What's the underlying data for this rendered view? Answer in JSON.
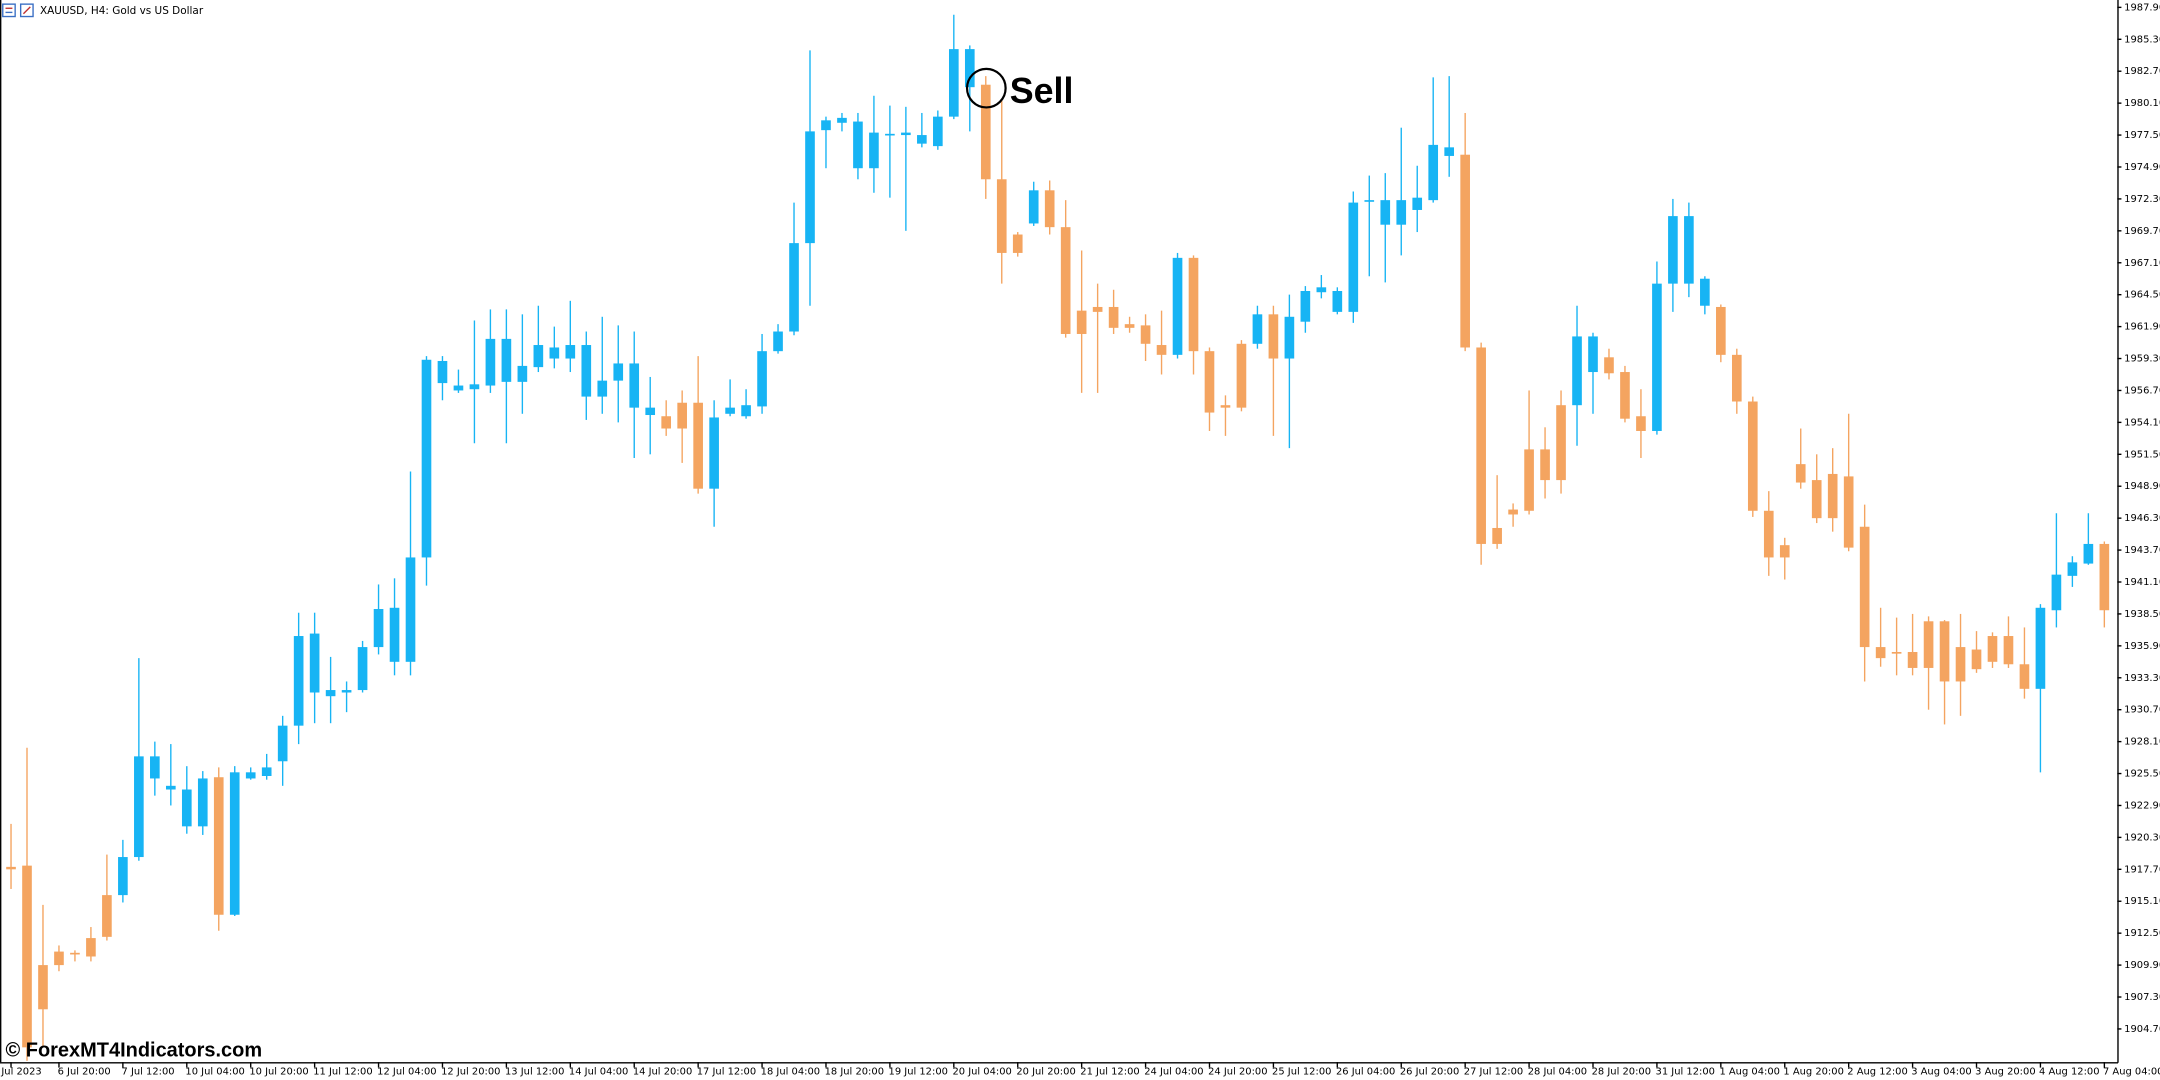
{
  "chart_data": {
    "type": "candlestick",
    "title": "XAUUSD, H4:  Gold vs US Dollar",
    "annotation": "Sell",
    "watermark": "© ForexMT4Indicators.com",
    "up_color": "#17b4f4",
    "down_color": "#f4a460",
    "categories": [
      "Jul 2023",
      null,
      null,
      "6 Jul 20:00",
      null,
      null,
      null,
      "7 Jul 12:00",
      null,
      null,
      null,
      "10 Jul 04:00",
      null,
      null,
      null,
      "10 Jul 20:00",
      null,
      null,
      null,
      "11 Jul 12:00",
      null,
      null,
      null,
      "12 Jul 04:00",
      null,
      null,
      null,
      "12 Jul 20:00",
      null,
      null,
      null,
      "13 Jul 12:00",
      null,
      null,
      null,
      "14 Jul 04:00",
      null,
      null,
      null,
      "14 Jul 20:00",
      null,
      null,
      null,
      "17 Jul 12:00",
      null,
      null,
      null,
      "18 Jul 04:00",
      null,
      null,
      null,
      "18 Jul 20:00",
      null,
      null,
      null,
      "19 Jul 12:00",
      null,
      null,
      null,
      "20 Jul 04:00",
      null,
      null,
      null,
      "20 Jul 20:00",
      null,
      null,
      null,
      "21 Jul 12:00",
      null,
      null,
      null,
      "24 Jul 04:00",
      null,
      null,
      null,
      "24 Jul 20:00",
      null,
      null,
      null,
      "25 Jul 12:00",
      null,
      null,
      null,
      "26 Jul 04:00",
      null,
      null,
      null,
      "26 Jul 20:00",
      null,
      null,
      null,
      "27 Jul 12:00",
      null,
      null,
      null,
      "28 Jul 04:00",
      null,
      null,
      null,
      "28 Jul 20:00",
      null,
      null,
      null,
      "31 Jul 12:00",
      null,
      null,
      null,
      "1 Aug 04:00",
      null,
      null,
      null,
      "1 Aug 20:00",
      null,
      null,
      null,
      "2 Aug 12:00",
      null,
      null,
      null,
      "3 Aug 04:00",
      null,
      null,
      null,
      "3 Aug 20:00",
      null,
      null,
      null,
      "4 Aug 12:00",
      null,
      null,
      null,
      "7 Aug 04:00"
    ],
    "open": [
      1917.9,
      1918.0,
      1909.9,
      1911.0,
      1910.9,
      1912.1,
      1915.6,
      1915.6,
      1918.7,
      1925.1,
      1924.2,
      1921.2,
      1921.2,
      1925.2,
      1914.0,
      1925.1,
      1925.3,
      1926.5,
      1929.4,
      1932.1,
      1931.8,
      1932.1,
      1932.3,
      1935.8,
      1934.6,
      1934.6,
      1943.1,
      1957.3,
      1956.7,
      1956.8,
      1957.1,
      1957.4,
      1957.4,
      1958.6,
      1959.3,
      1959.3,
      1956.2,
      1956.2,
      1957.5,
      1955.3,
      1954.7,
      1954.6,
      1955.7,
      1955.7,
      1948.7,
      1954.8,
      1954.6,
      1955.4,
      1959.9,
      1961.5,
      1968.7,
      1977.9,
      1978.5,
      1974.8,
      1974.8,
      1977.5,
      1977.5,
      1976.8,
      1976.6,
      1979.0,
      1981.4,
      1981.6,
      1973.9,
      1969.4,
      1970.3,
      1973.0,
      1970.0,
      1963.2,
      1963.5,
      1963.5,
      1962.1,
      1962.0,
      1960.4,
      1959.6,
      1967.5,
      1959.9,
      1955.5,
      1960.5,
      1960.5,
      1962.9,
      1959.3,
      1962.3,
      1964.7,
      1963.1,
      1963.1,
      1972.1,
      1970.2,
      1970.2,
      1971.4,
      1972.2,
      1975.8,
      1975.9,
      1960.2,
      1945.5,
      1947.0,
      1951.9,
      1951.9,
      1955.5,
      1955.5,
      1958.2,
      1959.4,
      1958.2,
      1954.6,
      1953.4,
      1965.4,
      1965.4,
      1963.6,
      1963.5,
      1959.6,
      1955.8,
      1946.9,
      1944.1,
      1950.7,
      1949.4,
      1949.9,
      1949.7,
      1945.6,
      1935.8,
      1935.4,
      1935.4,
      1937.9,
      1937.9,
      1935.8,
      1935.6,
      1936.7,
      1936.7,
      1934.4,
      1932.4,
      1938.8,
      1941.6,
      1942.6,
      1944.2
    ],
    "high": [
      1921.4,
      1927.6,
      1914.8,
      1911.5,
      1911.1,
      1913.0,
      1918.9,
      1920.1,
      1934.9,
      1928.1,
      1927.9,
      1926.1,
      1925.7,
      1926.0,
      1926.1,
      1926.0,
      1927.1,
      1930.2,
      1938.6,
      1938.6,
      1935.0,
      1933.0,
      1936.3,
      1940.9,
      1941.4,
      1950.1,
      1959.5,
      1959.5,
      1958.4,
      1962.4,
      1963.3,
      1963.3,
      1962.9,
      1963.6,
      1961.9,
      1964.0,
      1961.5,
      1962.7,
      1962.0,
      1961.5,
      1957.8,
      1955.9,
      1956.7,
      1959.5,
      1955.9,
      1957.6,
      1956.8,
      1961.3,
      1962.1,
      1972.0,
      1984.4,
      1979.0,
      1979.3,
      1979.3,
      1980.7,
      1979.9,
      1979.8,
      1979.3,
      1979.5,
      1987.3,
      1984.8,
      1982.3,
      1980.4,
      1969.6,
      1973.7,
      1973.8,
      1972.2,
      1968.1,
      1965.4,
      1964.9,
      1962.7,
      1962.9,
      1963.2,
      1967.9,
      1967.7,
      1960.2,
      1956.3,
      1960.8,
      1963.6,
      1963.6,
      1964.5,
      1965.2,
      1966.1,
      1965.1,
      1972.9,
      1974.2,
      1974.4,
      1978.1,
      1975.0,
      1982.2,
      1982.3,
      1979.3,
      1960.6,
      1949.8,
      1947.5,
      1956.7,
      1953.7,
      1956.7,
      1963.6,
      1961.4,
      1960.1,
      1958.7,
      1956.8,
      1967.2,
      1972.3,
      1972.0,
      1966.0,
      1963.7,
      1960.1,
      1956.2,
      1948.5,
      1944.7,
      1953.6,
      1951.5,
      1952.0,
      1954.8,
      1947.4,
      1939.0,
      1938.2,
      1938.5,
      1938.3,
      1938.0,
      1938.5,
      1937.1,
      1937.0,
      1938.3,
      1937.4,
      1939.3,
      1946.7,
      1943.2,
      1946.7,
      1944.4
    ],
    "low": [
      1916.1,
      1902.1,
      1903.2,
      1909.4,
      1910.2,
      1910.2,
      1911.9,
      1915.0,
      1918.4,
      1923.7,
      1922.9,
      1920.6,
      1920.5,
      1912.7,
      1913.9,
      1925.0,
      1925.0,
      1924.5,
      1927.9,
      1929.6,
      1929.6,
      1930.5,
      1932.1,
      1935.2,
      1933.5,
      1933.5,
      1940.8,
      1955.9,
      1956.5,
      1952.4,
      1956.5,
      1952.4,
      1954.8,
      1958.2,
      1958.5,
      1958.2,
      1954.3,
      1954.8,
      1954.1,
      1951.2,
      1951.5,
      1953.0,
      1950.8,
      1948.3,
      1945.6,
      1954.6,
      1954.4,
      1954.8,
      1959.7,
      1961.2,
      1963.6,
      1974.8,
      1977.8,
      1973.9,
      1972.8,
      1972.4,
      1969.7,
      1976.5,
      1976.3,
      1978.8,
      1977.8,
      1972.3,
      1965.4,
      1967.6,
      1970.1,
      1969.4,
      1961.0,
      1956.5,
      1956.5,
      1961.3,
      1961.4,
      1959.1,
      1958.0,
      1959.3,
      1958.0,
      1953.4,
      1953.0,
      1955.0,
      1960.1,
      1953.0,
      1952.0,
      1961.4,
      1964.2,
      1962.9,
      1962.2,
      1966.0,
      1965.5,
      1967.7,
      1969.6,
      1972.0,
      1974.1,
      1959.9,
      1942.5,
      1943.8,
      1945.6,
      1946.6,
      1947.9,
      1948.3,
      1952.2,
      1954.8,
      1957.6,
      1954.1,
      1951.2,
      1953.1,
      1963.1,
      1964.3,
      1962.9,
      1959.0,
      1954.8,
      1946.4,
      1941.6,
      1941.3,
      1948.7,
      1945.9,
      1945.2,
      1943.6,
      1933.0,
      1934.2,
      1933.5,
      1933.5,
      1930.7,
      1929.5,
      1930.2,
      1933.7,
      1934.1,
      1934.1,
      1931.6,
      1925.6,
      1937.4,
      1940.7,
      1942.5,
      1937.4
    ],
    "close": [
      1917.7,
      1903.2,
      1906.3,
      1909.9,
      1910.8,
      1910.6,
      1912.2,
      1918.7,
      1926.9,
      1926.9,
      1924.5,
      1924.2,
      1925.1,
      1914.0,
      1925.6,
      1925.6,
      1926.0,
      1929.4,
      1936.7,
      1936.9,
      1932.3,
      1932.3,
      1935.8,
      1938.9,
      1939.0,
      1943.1,
      1959.2,
      1959.1,
      1957.1,
      1957.2,
      1960.9,
      1960.9,
      1958.7,
      1960.4,
      1960.2,
      1960.4,
      1960.4,
      1957.5,
      1958.9,
      1958.9,
      1955.3,
      1953.6,
      1953.6,
      1948.7,
      1954.5,
      1955.3,
      1955.5,
      1959.9,
      1961.5,
      1968.7,
      1977.8,
      1978.7,
      1978.9,
      1978.6,
      1977.7,
      1977.6,
      1977.7,
      1977.5,
      1979.0,
      1984.5,
      1984.5,
      1973.9,
      1967.9,
      1967.9,
      1973.0,
      1970.0,
      1961.3,
      1961.3,
      1963.1,
      1961.8,
      1961.8,
      1960.5,
      1959.6,
      1967.5,
      1959.9,
      1954.9,
      1955.3,
      1955.3,
      1962.9,
      1959.3,
      1962.7,
      1964.8,
      1965.1,
      1964.8,
      1972.0,
      1972.2,
      1972.2,
      1972.2,
      1972.4,
      1976.7,
      1976.5,
      1960.2,
      1944.2,
      1944.2,
      1946.6,
      1946.9,
      1949.4,
      1949.4,
      1961.1,
      1961.1,
      1958.1,
      1954.4,
      1953.4,
      1965.4,
      1970.9,
      1970.9,
      1965.8,
      1959.6,
      1955.8,
      1946.9,
      1943.1,
      1943.1,
      1949.2,
      1946.3,
      1946.3,
      1943.9,
      1935.8,
      1934.9,
      1935.3,
      1934.1,
      1934.1,
      1933.0,
      1933.0,
      1934.0,
      1934.6,
      1934.4,
      1932.4,
      1939.0,
      1941.7,
      1942.7,
      1944.2,
      1938.8
    ],
    "ylim": [
      1902.0,
      1988.5
    ],
    "yticks": [
      {
        "value": 1904.7,
        "label": "1904.70"
      },
      {
        "value": 1907.3,
        "label": "1907.30"
      },
      {
        "value": 1909.9,
        "label": "1909.90"
      },
      {
        "value": 1912.5,
        "label": "1912.50"
      },
      {
        "value": 1915.1,
        "label": "1915.10"
      },
      {
        "value": 1917.7,
        "label": "1917.70"
      },
      {
        "value": 1920.3,
        "label": "1920.30"
      },
      {
        "value": 1922.9,
        "label": "1922.90"
      },
      {
        "value": 1925.5,
        "label": "1925.50"
      },
      {
        "value": 1928.1,
        "label": "1928.10"
      },
      {
        "value": 1930.7,
        "label": "1930.70"
      },
      {
        "value": 1933.3,
        "label": "1933.30"
      },
      {
        "value": 1935.9,
        "label": "1935.90"
      },
      {
        "value": 1938.5,
        "label": "1938.50"
      },
      {
        "value": 1941.1,
        "label": "1941.10"
      },
      {
        "value": 1943.7,
        "label": "1943.70"
      },
      {
        "value": 1946.3,
        "label": "1946.30"
      },
      {
        "value": 1948.9,
        "label": "1948.90"
      },
      {
        "value": 1951.5,
        "label": "1951.50"
      },
      {
        "value": 1954.1,
        "label": "1954.10"
      },
      {
        "value": 1956.7,
        "label": "1956.70"
      },
      {
        "value": 1959.3,
        "label": "1959.30"
      },
      {
        "value": 1961.9,
        "label": "1961.90"
      },
      {
        "value": 1964.5,
        "label": "1964.50"
      },
      {
        "value": 1967.1,
        "label": "1967.10"
      },
      {
        "value": 1969.7,
        "label": "1969.70"
      },
      {
        "value": 1972.3,
        "label": "1972.30"
      },
      {
        "value": 1974.9,
        "label": "1974.90"
      },
      {
        "value": 1977.5,
        "label": "1977.50"
      },
      {
        "value": 1980.1,
        "label": "1980.10"
      },
      {
        "value": 1982.7,
        "label": "1982.70"
      },
      {
        "value": 1985.3,
        "label": "1985.30"
      },
      {
        "value": 1987.9,
        "label": "1987.90"
      }
    ]
  }
}
